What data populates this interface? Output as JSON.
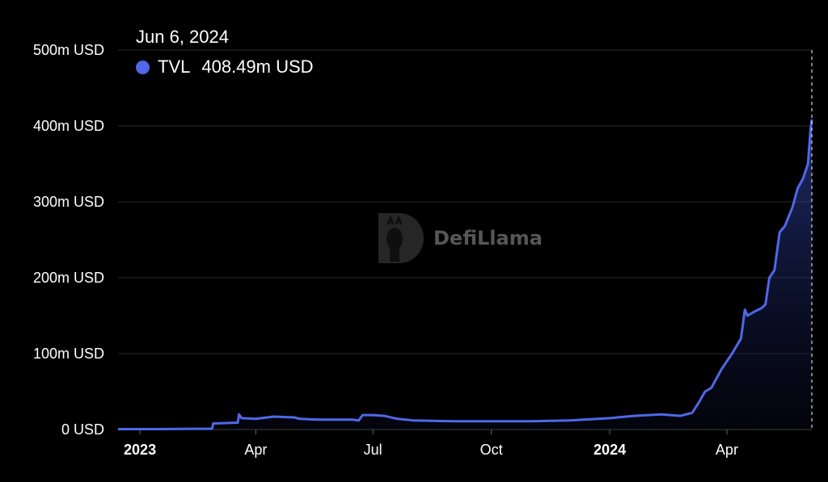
{
  "tooltip": {
    "date": "Jun 6, 2024",
    "series": "TVL",
    "value": "408.49m USD"
  },
  "watermark": {
    "text": "DefiLlama"
  },
  "colors": {
    "line": "#4f68e8",
    "background": "#000000",
    "grid": "#2a2a2a"
  },
  "chart_data": {
    "type": "area",
    "series": [
      {
        "name": "TVL",
        "points": [
          [
            "2022-12-15",
            0.5
          ],
          [
            "2023-01-15",
            0.5
          ],
          [
            "2023-02-10",
            1
          ],
          [
            "2023-02-26",
            1
          ],
          [
            "2023-02-27",
            8
          ],
          [
            "2023-03-18",
            9
          ],
          [
            "2023-03-19",
            20
          ],
          [
            "2023-03-21",
            15
          ],
          [
            "2023-04-01",
            14
          ],
          [
            "2023-04-15",
            17
          ],
          [
            "2023-05-01",
            16
          ],
          [
            "2023-05-05",
            14
          ],
          [
            "2023-05-20",
            13
          ],
          [
            "2023-06-15",
            13
          ],
          [
            "2023-06-20",
            12
          ],
          [
            "2023-06-23",
            19
          ],
          [
            "2023-07-01",
            19
          ],
          [
            "2023-07-10",
            18
          ],
          [
            "2023-07-20",
            14
          ],
          [
            "2023-08-01",
            12
          ],
          [
            "2023-09-01",
            11
          ],
          [
            "2023-10-01",
            11
          ],
          [
            "2023-11-01",
            11
          ],
          [
            "2023-12-01",
            12
          ],
          [
            "2024-01-01",
            15
          ],
          [
            "2024-01-20",
            18
          ],
          [
            "2024-02-10",
            20
          ],
          [
            "2024-02-25",
            18
          ],
          [
            "2024-03-05",
            22
          ],
          [
            "2024-03-10",
            35
          ],
          [
            "2024-03-15",
            50
          ],
          [
            "2024-03-20",
            55
          ],
          [
            "2024-03-28",
            80
          ],
          [
            "2024-04-05",
            100
          ],
          [
            "2024-04-12",
            120
          ],
          [
            "2024-04-15",
            158
          ],
          [
            "2024-04-17",
            150
          ],
          [
            "2024-04-22",
            155
          ],
          [
            "2024-04-28",
            160
          ],
          [
            "2024-05-01",
            165
          ],
          [
            "2024-05-04",
            200
          ],
          [
            "2024-05-08",
            210
          ],
          [
            "2024-05-12",
            260
          ],
          [
            "2024-05-16",
            268
          ],
          [
            "2024-05-22",
            293
          ],
          [
            "2024-05-26",
            318
          ],
          [
            "2024-05-30",
            330
          ],
          [
            "2024-06-03",
            350
          ],
          [
            "2024-06-05",
            395
          ],
          [
            "2024-06-06",
            408.49
          ]
        ]
      }
    ],
    "x_ticks": [
      {
        "date": "2023-01-01",
        "label": "2023",
        "major": true
      },
      {
        "date": "2023-04-01",
        "label": "Apr",
        "major": false
      },
      {
        "date": "2023-07-01",
        "label": "Jul",
        "major": false
      },
      {
        "date": "2023-10-01",
        "label": "Oct",
        "major": false
      },
      {
        "date": "2024-01-01",
        "label": "2024",
        "major": true
      },
      {
        "date": "2024-04-01",
        "label": "Apr",
        "major": false
      }
    ],
    "y_ticks": [
      {
        "value": 0,
        "label": "0 USD"
      },
      {
        "value": 100,
        "label": "100m USD"
      },
      {
        "value": 200,
        "label": "200m USD"
      },
      {
        "value": 300,
        "label": "300m USD"
      },
      {
        "value": 400,
        "label": "400m USD"
      },
      {
        "value": 500,
        "label": "500m USD"
      }
    ],
    "xlim": [
      "2022-12-15",
      "2024-06-06"
    ],
    "ylim": [
      0,
      500
    ],
    "ylabel": "",
    "xlabel": "",
    "grid": true
  }
}
